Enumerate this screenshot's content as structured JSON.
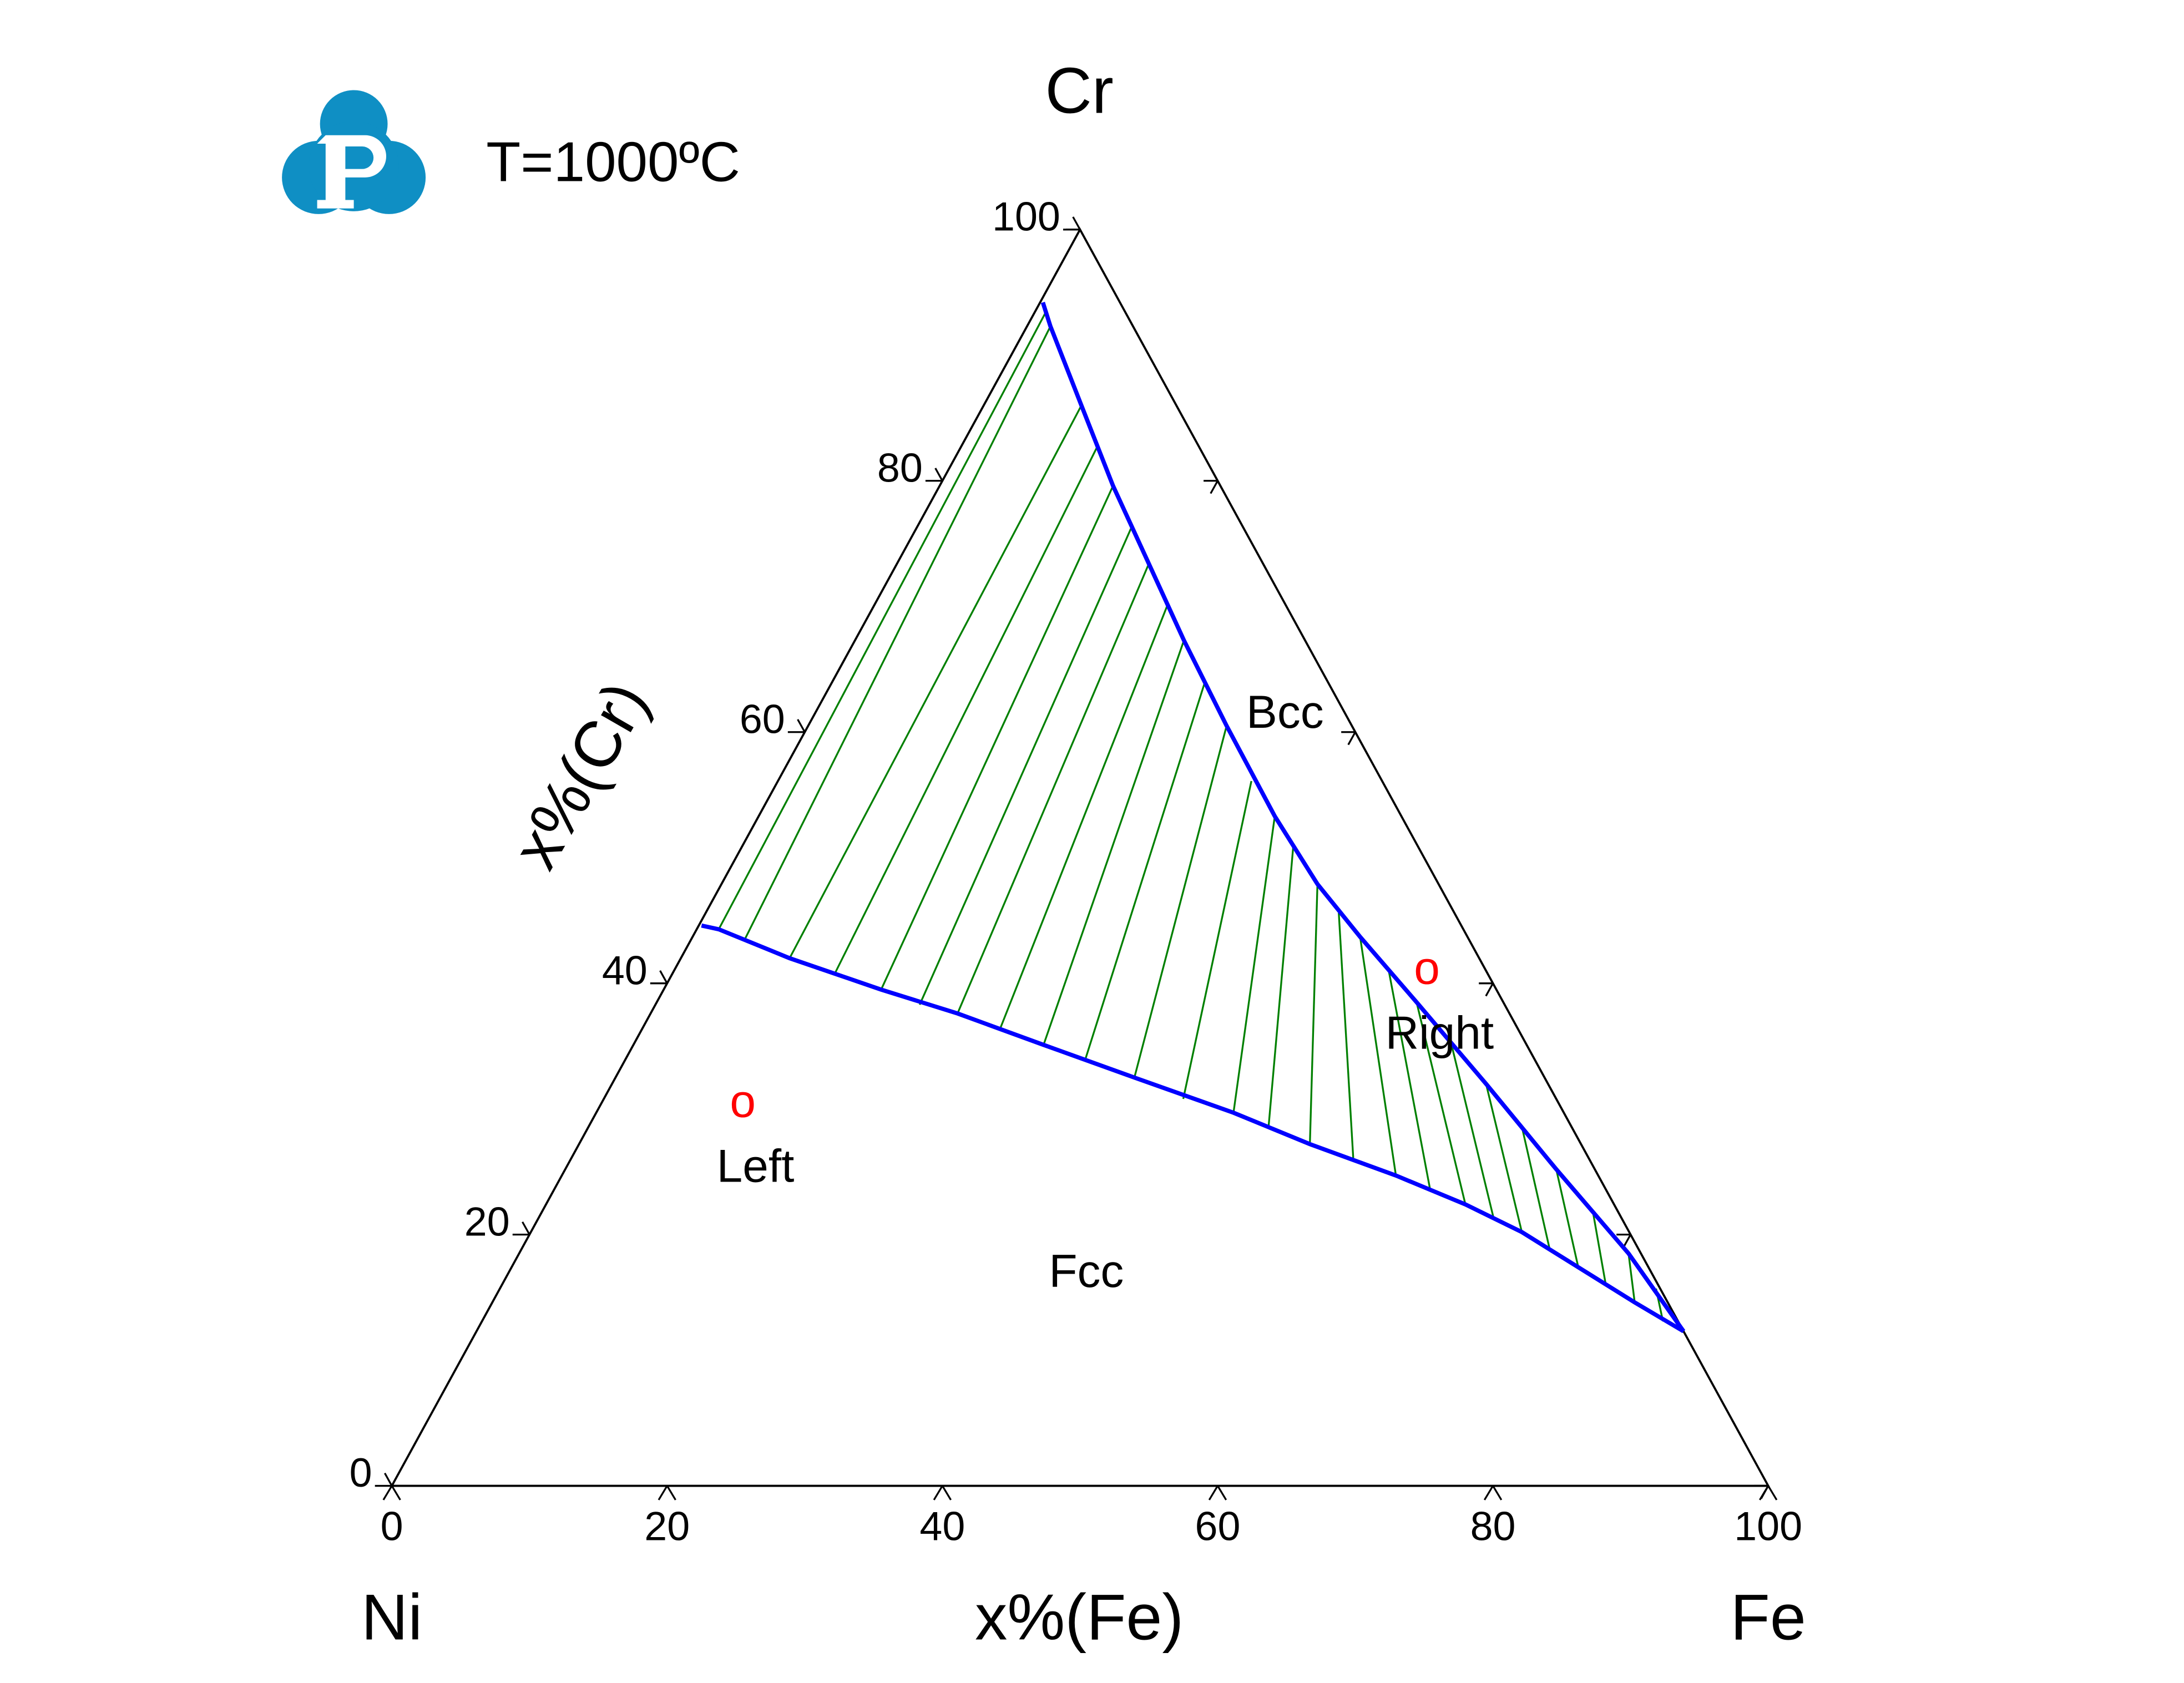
{
  "chart_data": {
    "type": "ternary",
    "title": "T=1000ºC",
    "corners": {
      "top": "Cr",
      "left": "Ni",
      "right": "Fe"
    },
    "xlabel": "x%(Fe)",
    "ylabel": "x%(Cr)",
    "xlim": [
      0,
      100
    ],
    "ylim": [
      0,
      100
    ],
    "xticks": [
      0,
      20,
      40,
      60,
      80,
      100
    ],
    "yticks": [
      0,
      20,
      40,
      60,
      80,
      100
    ],
    "phase_labels": [
      "Bcc",
      "Fcc"
    ],
    "series": [
      {
        "color": "#0000ff",
        "x": [
          0.2,
          1.6,
          7.9,
          15.8,
          22.3,
          29.8,
          37.7,
          46.3,
          53.1,
          60.6,
          66.8,
          72.0,
          77.5,
          83.0,
          87.7
        ],
        "y": [
          44.6,
          44.3,
          42.0,
          39.5,
          37.6,
          35.1,
          32.5,
          29.7,
          27.2,
          24.7,
          22.4,
          20.2,
          17.4,
          14.6,
          12.3
        ]
      },
      {
        "color": "#0000ff",
        "x": [
          0.2,
          1.7,
          7.1,
          12.6,
          18.3,
          23.9,
          30.4,
          37.5,
          43.3,
          48.5,
          55.2,
          63.5,
          72.0,
          80.6,
          87.7
        ],
        "y": [
          94.2,
          92.3,
          86.0,
          79.6,
          73.4,
          67.3,
          60.5,
          53.3,
          47.9,
          43.7,
          38.5,
          32.0,
          25.2,
          18.5,
          12.3
        ]
      }
    ],
    "tie_lines": {
      "color": "#008000",
      "x1": [
        1.6,
        3.9,
        7.9,
        11.8,
        15.8,
        19.2,
        22.3,
        26.0,
        29.8,
        33.4,
        37.7,
        42.1,
        46.3,
        49.4,
        53.1,
        56.8,
        60.6,
        63.7,
        66.8,
        69.4,
        72.0,
        74.8,
        77.5,
        80.2,
        83.0,
        85.8
      ],
      "y1": [
        44.3,
        43.4,
        42.0,
        40.7,
        39.5,
        38.3,
        37.6,
        36.4,
        35.1,
        34.0,
        32.5,
        30.8,
        29.7,
        28.6,
        27.2,
        26.1,
        24.7,
        23.5,
        22.4,
        21.3,
        20.2,
        18.7,
        17.4,
        16.0,
        14.6,
        13.1
      ],
      "x2": [
        0.8,
        1.7,
        7.1,
        9.9,
        12.6,
        15.6,
        18.3,
        21.3,
        23.9,
        27.1,
        30.4,
        34.4,
        37.5,
        40.0,
        43.3,
        46.0,
        48.5,
        52.0,
        55.2,
        59.3,
        63.5,
        67.8,
        72.0,
        76.3,
        80.6,
        84.0
      ],
      "y2": [
        93.4,
        92.3,
        86.0,
        82.6,
        79.6,
        76.2,
        73.4,
        70.1,
        67.3,
        63.9,
        60.5,
        56.1,
        53.3,
        51.0,
        47.9,
        45.6,
        43.7,
        40.9,
        38.5,
        35.3,
        32.0,
        28.6,
        25.2,
        21.9,
        18.5,
        15.7
      ]
    },
    "points": [
      {
        "label": "Left",
        "marker": "o",
        "color": "#ff0000",
        "x": 10.5,
        "y": 30.0
      },
      {
        "label": "Right",
        "marker": "o",
        "color": "#ff0000",
        "x": 54.9,
        "y": 40.6
      }
    ]
  }
}
